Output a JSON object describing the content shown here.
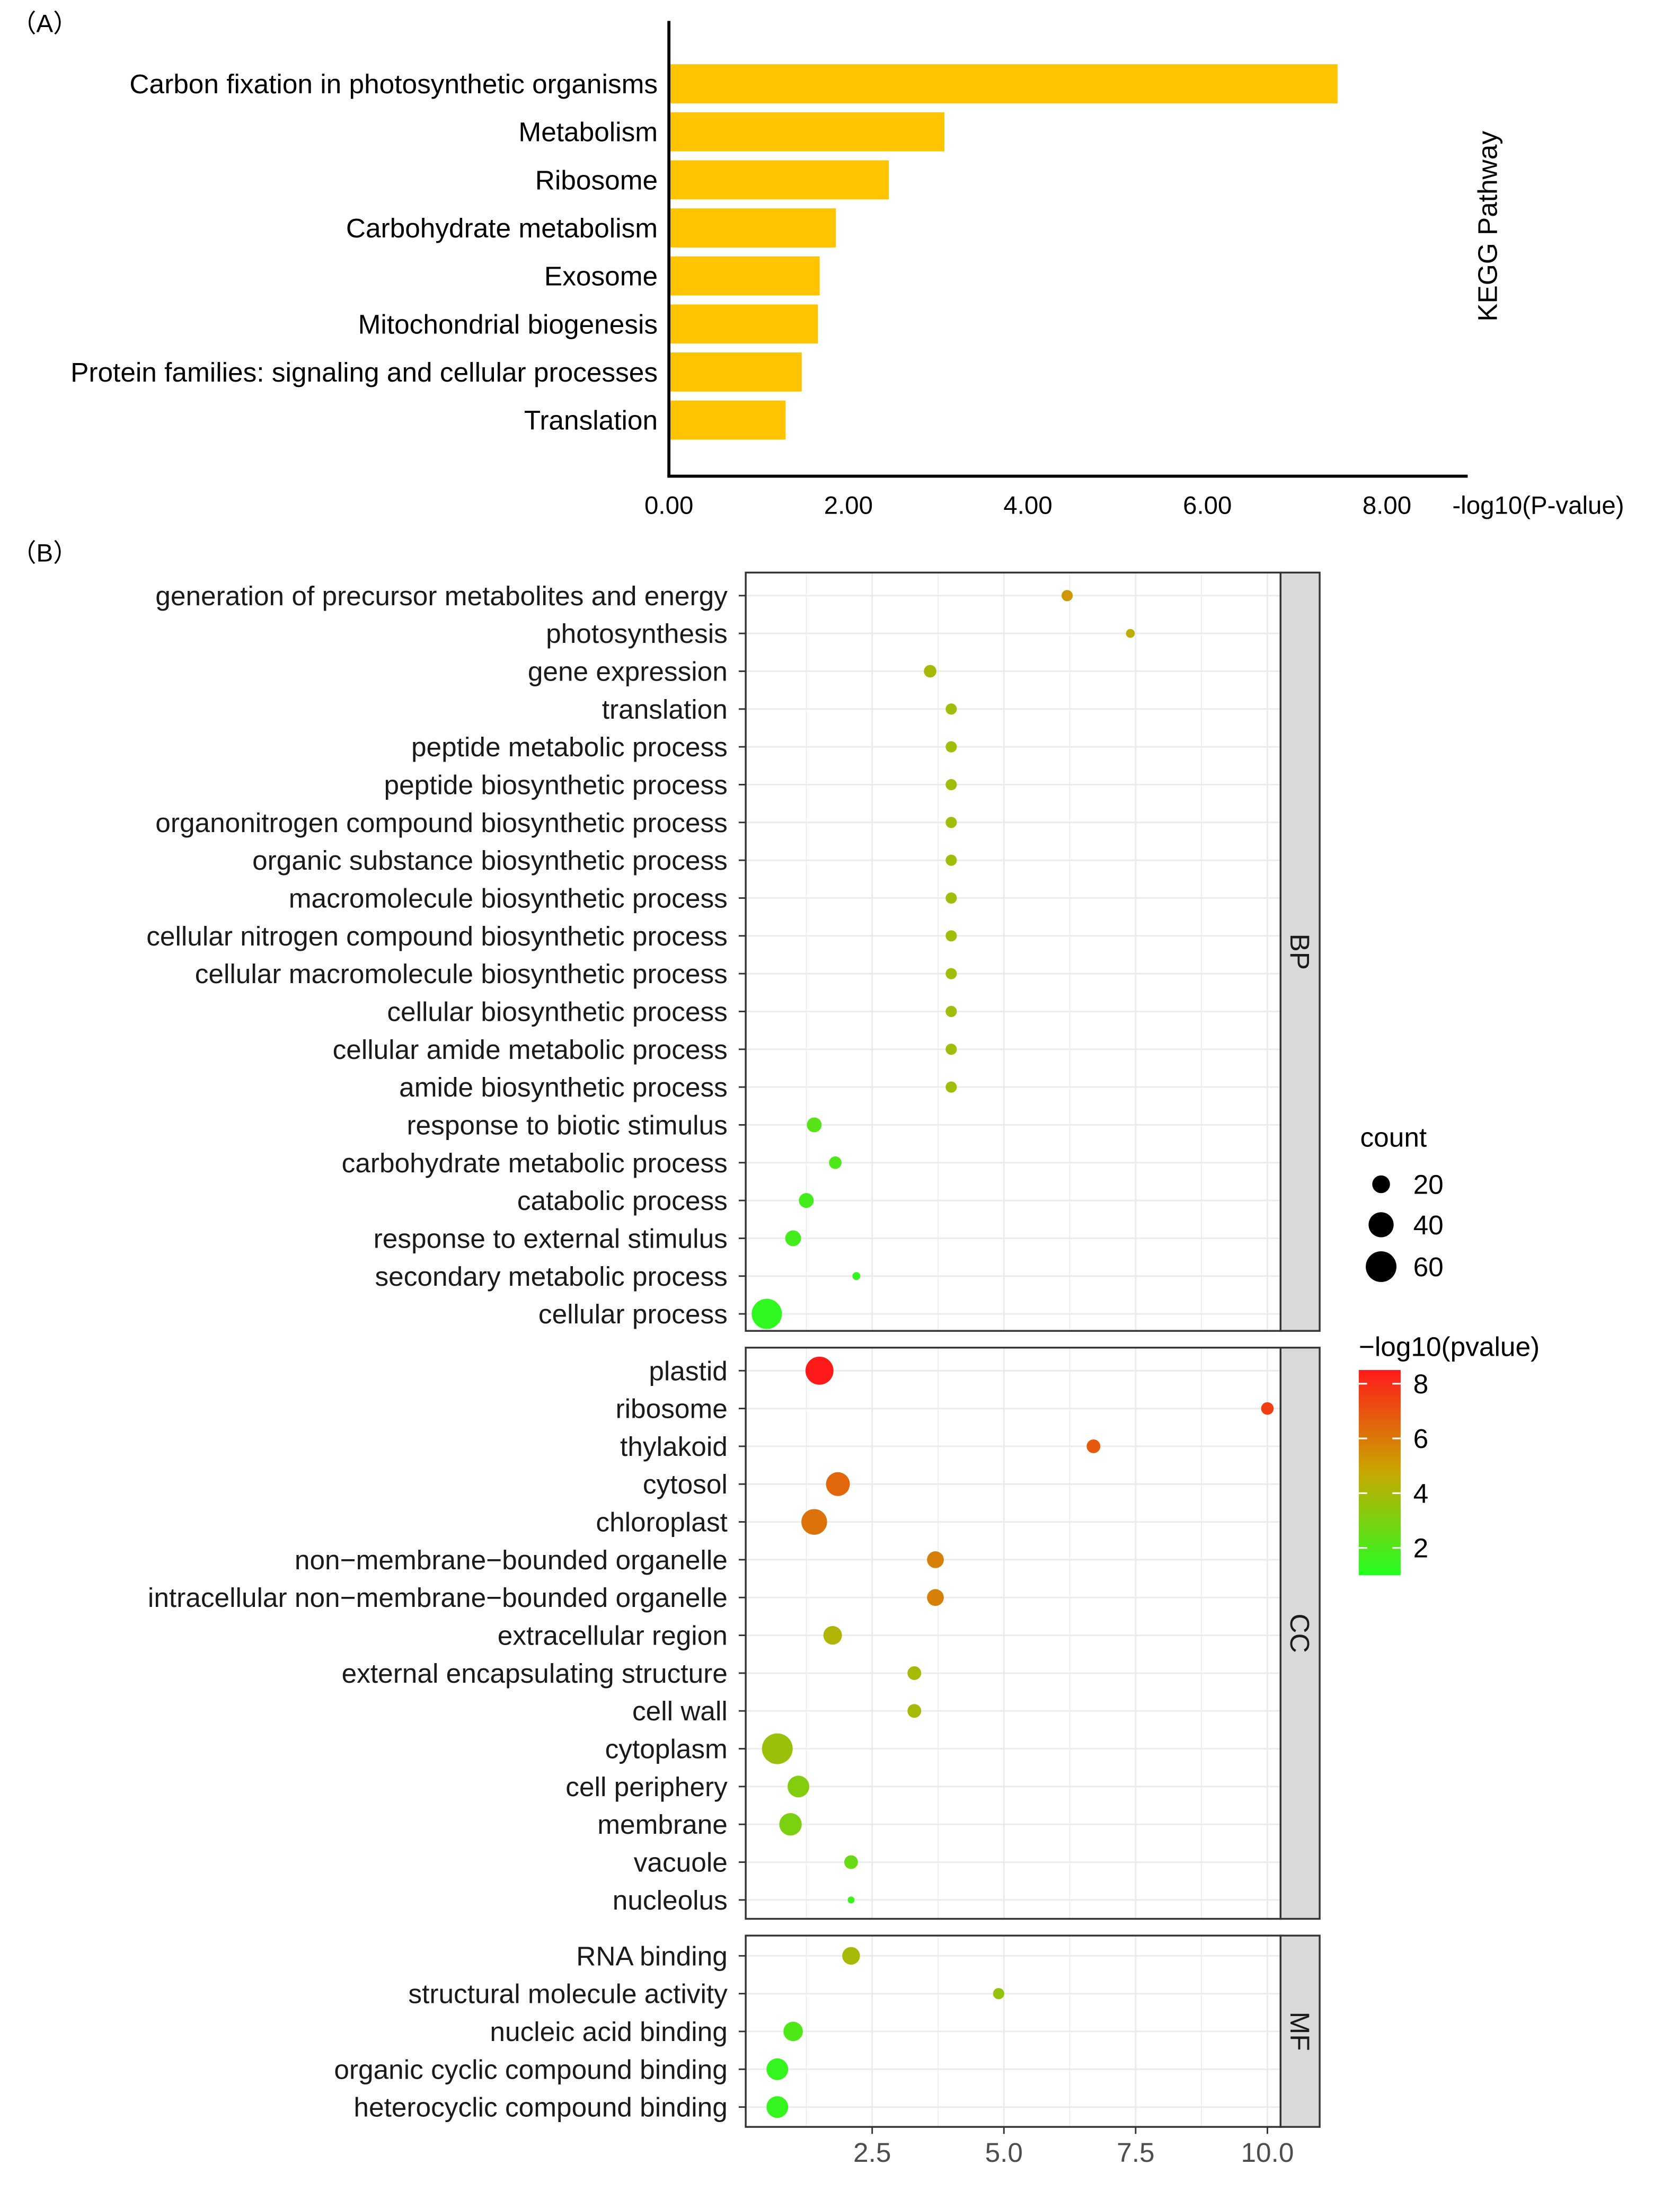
{
  "chart_data": [
    {
      "panel_label": "（A）",
      "type": "bar",
      "orientation": "horizontal",
      "xlabel": "-log10(P-value)",
      "ylabel": "KEGG Pathway",
      "xlim": [
        0,
        8.9
      ],
      "xticks": [
        0,
        2,
        4,
        6,
        8
      ],
      "xtick_labels": [
        "0.00",
        "2.00",
        "4.00",
        "6.00",
        "8.00"
      ],
      "bar_color": "#FFC400",
      "categories": [
        "Carbon fixation in photosynthetic organisms",
        "Metabolism",
        "Ribosome",
        "Carbohydrate metabolism",
        "Exosome",
        "Mitochondrial biogenesis",
        "Protein families: signaling and cellular processes",
        "Translation"
      ],
      "values": [
        7.45,
        3.07,
        2.45,
        1.86,
        1.68,
        1.66,
        1.48,
        1.3
      ]
    },
    {
      "panel_label": "（B）",
      "type": "scatter",
      "xlim": [
        0.1,
        10.25
      ],
      "xticks": [
        2.5,
        5.0,
        7.5,
        10.0
      ],
      "xtick_labels": [
        "2.5",
        "5.0",
        "7.5",
        "10.0"
      ],
      "size_legend": {
        "title": "count",
        "values": [
          20,
          40,
          60
        ]
      },
      "color_legend": {
        "title": "−log10(pvalue)",
        "ticks": [
          8,
          6,
          4,
          2
        ],
        "min": 1.0,
        "max": 8.5,
        "low_color": "#22FF22",
        "mid_color": "#C8A800",
        "high_color": "#FF1A1A"
      },
      "facets": [
        {
          "name": "BP",
          "points": [
            {
              "term": "generation of precursor metabolites and energy",
              "x": 6.2,
              "count": 8,
              "p": 5.2
            },
            {
              "term": "photosynthesis",
              "x": 7.4,
              "count": 5,
              "p": 4.5
            },
            {
              "term": "gene expression",
              "x": 3.6,
              "count": 10,
              "p": 4.0
            },
            {
              "term": "translation",
              "x": 4.0,
              "count": 8,
              "p": 3.8
            },
            {
              "term": "peptide metabolic process",
              "x": 4.0,
              "count": 8,
              "p": 3.8
            },
            {
              "term": "peptide biosynthetic process",
              "x": 4.0,
              "count": 8,
              "p": 3.8
            },
            {
              "term": "organonitrogen compound biosynthetic process",
              "x": 4.0,
              "count": 8,
              "p": 3.8
            },
            {
              "term": "organic substance biosynthetic process",
              "x": 4.0,
              "count": 8,
              "p": 3.8
            },
            {
              "term": "macromolecule biosynthetic process",
              "x": 4.0,
              "count": 8,
              "p": 3.8
            },
            {
              "term": "cellular nitrogen compound biosynthetic process",
              "x": 4.0,
              "count": 8,
              "p": 3.8
            },
            {
              "term": "cellular macromolecule biosynthetic process",
              "x": 4.0,
              "count": 8,
              "p": 3.8
            },
            {
              "term": "cellular biosynthetic process",
              "x": 4.0,
              "count": 8,
              "p": 3.8
            },
            {
              "term": "cellular amide metabolic process",
              "x": 4.0,
              "count": 8,
              "p": 3.8
            },
            {
              "term": "amide biosynthetic process",
              "x": 4.0,
              "count": 8,
              "p": 3.8
            },
            {
              "term": "response to biotic stimulus",
              "x": 1.4,
              "count": 14,
              "p": 2.2
            },
            {
              "term": "carbohydrate metabolic process",
              "x": 1.8,
              "count": 10,
              "p": 2.0
            },
            {
              "term": "catabolic process",
              "x": 1.25,
              "count": 14,
              "p": 1.8
            },
            {
              "term": "response to external stimulus",
              "x": 1.0,
              "count": 16,
              "p": 1.8
            },
            {
              "term": "secondary metabolic process",
              "x": 2.2,
              "count": 4,
              "p": 1.4
            },
            {
              "term": "cellular process",
              "x": 0.5,
              "count": 58,
              "p": 1.3
            }
          ]
        },
        {
          "name": "CC",
          "points": [
            {
              "term": "plastid",
              "x": 1.5,
              "count": 50,
              "p": 8.5
            },
            {
              "term": "ribosome",
              "x": 10.0,
              "count": 10,
              "p": 7.5
            },
            {
              "term": "thylakoid",
              "x": 6.7,
              "count": 12,
              "p": 6.8
            },
            {
              "term": "cytosol",
              "x": 1.85,
              "count": 36,
              "p": 6.5
            },
            {
              "term": "chloroplast",
              "x": 1.4,
              "count": 42,
              "p": 6.2
            },
            {
              "term": "non−membrane−bounded organelle",
              "x": 3.7,
              "count": 18,
              "p": 5.8
            },
            {
              "term": "intracellular non−membrane−bounded organelle",
              "x": 3.7,
              "count": 18,
              "p": 5.8
            },
            {
              "term": "extracellular region",
              "x": 1.75,
              "count": 22,
              "p": 4.2
            },
            {
              "term": "external encapsulating structure",
              "x": 3.3,
              "count": 12,
              "p": 4.0
            },
            {
              "term": "cell wall",
              "x": 3.3,
              "count": 12,
              "p": 4.0
            },
            {
              "term": "cytoplasm",
              "x": 0.7,
              "count": 60,
              "p": 3.7
            },
            {
              "term": "cell periphery",
              "x": 1.1,
              "count": 30,
              "p": 3.2
            },
            {
              "term": "membrane",
              "x": 0.95,
              "count": 32,
              "p": 3.0
            },
            {
              "term": "vacuole",
              "x": 2.1,
              "count": 12,
              "p": 2.6
            },
            {
              "term": "nucleolus",
              "x": 2.1,
              "count": 3,
              "p": 1.6
            }
          ]
        },
        {
          "name": "MF",
          "points": [
            {
              "term": "RNA binding",
              "x": 2.1,
              "count": 20,
              "p": 4.0
            },
            {
              "term": "structural molecule activity",
              "x": 4.9,
              "count": 8,
              "p": 3.6
            },
            {
              "term": "nucleic acid binding",
              "x": 1.0,
              "count": 24,
              "p": 2.0
            },
            {
              "term": "organic cyclic compound binding",
              "x": 0.7,
              "count": 30,
              "p": 1.4
            },
            {
              "term": "heterocyclic compound binding",
              "x": 0.7,
              "count": 30,
              "p": 1.4
            }
          ]
        }
      ]
    }
  ]
}
